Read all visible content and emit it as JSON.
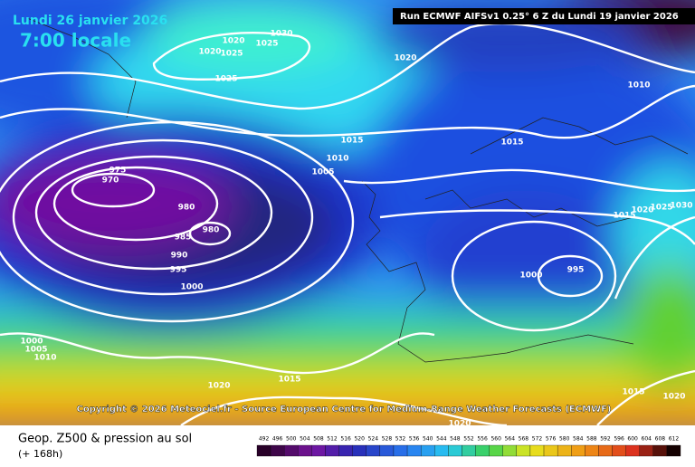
{
  "header": {
    "date": "Lundi 26 janvier 2026",
    "time": "7:00 locale",
    "run": "Run ECMWF AIFSv1 0.25° 6 Z du Lundi 19 janvier 2026"
  },
  "isobar_labels": [
    "1020",
    "1025",
    "1030",
    "1020",
    "1025",
    "1025",
    "1020",
    "1010",
    "1015",
    "1015",
    "1010",
    "1005",
    "975",
    "970",
    "980",
    "980",
    "985",
    "990",
    "995",
    "1000",
    "1000",
    "995",
    "1015",
    "1020",
    "1025",
    "1030",
    "1000",
    "1005",
    "1010",
    "1015",
    "1020",
    "1015",
    "1020",
    "1020"
  ],
  "copyright": "Copyright © 2026 Meteociel.fr - Source European Centre for Medium-Range Weather Forecasts (ECMWF)",
  "footer": {
    "title": "Geop. Z500 & pression au sol",
    "lead": "(+ 168h)"
  },
  "legend": {
    "labels": [
      "492",
      "496",
      "500",
      "504",
      "508",
      "512",
      "516",
      "520",
      "524",
      "528",
      "532",
      "536",
      "540",
      "544",
      "548",
      "552",
      "556",
      "560",
      "564",
      "568",
      "572",
      "576",
      "580",
      "584",
      "588",
      "592",
      "596",
      "600",
      "604",
      "608",
      "612"
    ]
  }
}
